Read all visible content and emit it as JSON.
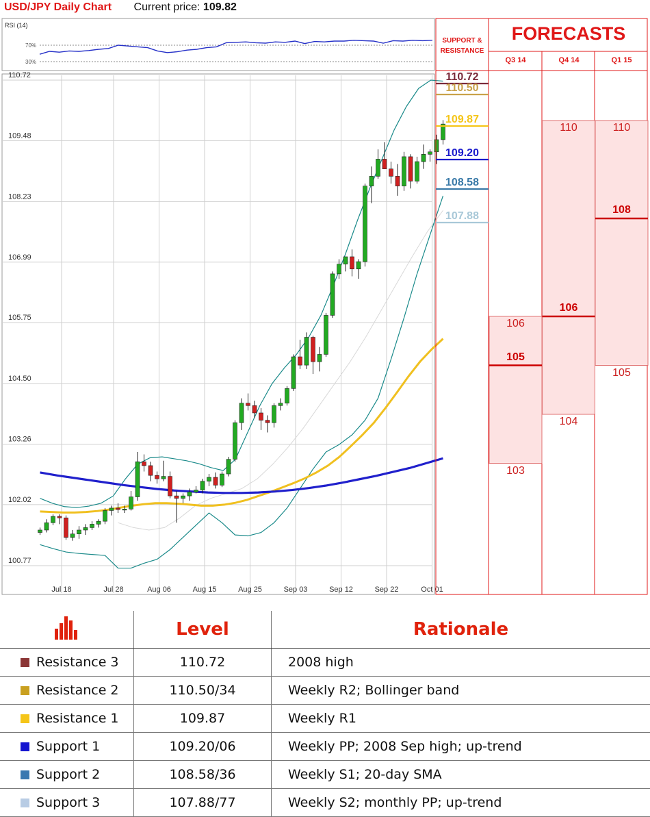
{
  "header": {
    "title": "USD/JPY Daily Chart",
    "price_label": "Current price:",
    "price": "109.82"
  },
  "rsi": {
    "label": "RSI (14)",
    "levels": [
      "70%",
      "30%"
    ],
    "values": [
      48,
      55,
      53,
      56,
      55,
      57,
      60,
      62,
      70,
      68,
      66,
      64,
      56,
      52,
      54,
      58,
      60,
      64,
      66,
      76,
      77,
      78,
      76,
      75,
      78,
      77,
      80,
      74,
      79,
      78,
      80,
      80,
      82,
      81,
      80,
      75,
      81,
      80,
      82,
      81,
      82
    ]
  },
  "colors": {
    "accent": "#e01818",
    "r3": "#8b2a2a",
    "r2": "#c9a24a",
    "r1": "#f5c518",
    "s1": "#1a1acc",
    "s2": "#3a7aa8",
    "s3": "#a8c8d8",
    "sma_yellow": "#f0c020",
    "sma_blue": "#2020cc",
    "bands": "#1a8a8a",
    "up": "#22aa22",
    "down": "#d02020",
    "forecast_fill": "#fde2e2"
  },
  "chart_data": [
    {
      "type": "candlestick",
      "y_ticks": [
        "110.72",
        "109.48",
        "108.23",
        "106.99",
        "105.75",
        "104.50",
        "103.26",
        "102.02",
        "100.77"
      ],
      "y_tick_values": [
        110.72,
        109.48,
        108.23,
        106.99,
        105.75,
        104.5,
        103.26,
        102.02,
        100.77
      ],
      "ylim": [
        100.68,
        110.77
      ],
      "x_labels": [
        "Jul 18",
        "Jul 28",
        "Aug 06",
        "Aug 15",
        "Aug 25",
        "Sep 03",
        "Sep 12",
        "Sep 22",
        "Oct 01"
      ],
      "x_label_index": [
        1,
        9,
        16,
        23,
        30,
        37,
        44,
        51,
        58
      ],
      "candles": [
        [
          101.45,
          101.55,
          101.4,
          101.5
        ],
        [
          101.5,
          101.72,
          101.45,
          101.65
        ],
        [
          101.65,
          101.82,
          101.6,
          101.78
        ],
        [
          101.78,
          101.82,
          101.62,
          101.75
        ],
        [
          101.75,
          101.8,
          101.3,
          101.35
        ],
        [
          101.35,
          101.5,
          101.28,
          101.42
        ],
        [
          101.42,
          101.58,
          101.32,
          101.5
        ],
        [
          101.5,
          101.62,
          101.4,
          101.55
        ],
        [
          101.55,
          101.68,
          101.5,
          101.62
        ],
        [
          101.62,
          101.72,
          101.55,
          101.68
        ],
        [
          101.68,
          101.95,
          101.62,
          101.9
        ],
        [
          101.9,
          102.0,
          101.8,
          101.95
        ],
        [
          101.95,
          102.05,
          101.85,
          101.92
        ],
        [
          101.92,
          102.0,
          101.85,
          101.93
        ],
        [
          101.93,
          102.3,
          101.9,
          102.18
        ],
        [
          102.18,
          103.1,
          102.1,
          102.9
        ],
        [
          102.9,
          103.05,
          102.7,
          102.82
        ],
        [
          102.82,
          102.9,
          102.5,
          102.62
        ],
        [
          102.62,
          102.7,
          102.45,
          102.55
        ],
        [
          102.55,
          102.92,
          102.5,
          102.6
        ],
        [
          102.6,
          102.7,
          102.15,
          102.2
        ],
        [
          102.2,
          102.3,
          101.65,
          102.15
        ],
        [
          102.15,
          102.25,
          102.05,
          102.2
        ],
        [
          102.2,
          102.35,
          102.1,
          102.28
        ],
        [
          102.28,
          102.4,
          102.25,
          102.32
        ],
        [
          102.32,
          102.55,
          102.25,
          102.5
        ],
        [
          102.5,
          102.65,
          102.4,
          102.58
        ],
        [
          102.58,
          102.68,
          102.35,
          102.42
        ],
        [
          102.42,
          102.7,
          102.38,
          102.65
        ],
        [
          102.65,
          103.0,
          102.6,
          102.95
        ],
        [
          102.95,
          103.75,
          102.9,
          103.7
        ],
        [
          103.7,
          104.2,
          103.55,
          104.1
        ],
        [
          104.1,
          104.3,
          103.95,
          104.05
        ],
        [
          104.05,
          104.15,
          103.8,
          103.9
        ],
        [
          103.9,
          104.0,
          103.55,
          103.75
        ],
        [
          103.75,
          103.85,
          103.5,
          103.7
        ],
        [
          103.7,
          104.1,
          103.6,
          104.05
        ],
        [
          104.05,
          104.2,
          103.95,
          104.1
        ],
        [
          104.1,
          104.45,
          104.05,
          104.4
        ],
        [
          104.4,
          105.1,
          104.35,
          105.05
        ],
        [
          105.05,
          105.4,
          104.8,
          104.88
        ],
        [
          104.88,
          105.55,
          104.8,
          105.45
        ],
        [
          105.45,
          105.48,
          104.7,
          104.95
        ],
        [
          104.95,
          105.25,
          104.75,
          105.1
        ],
        [
          105.1,
          105.95,
          105.05,
          105.9
        ],
        [
          105.9,
          106.8,
          105.85,
          106.75
        ],
        [
          106.75,
          107.05,
          106.65,
          106.95
        ],
        [
          106.95,
          107.1,
          106.8,
          107.1
        ],
        [
          107.1,
          107.25,
          106.7,
          106.85
        ],
        [
          106.85,
          107.05,
          106.65,
          107.0
        ],
        [
          107.0,
          108.6,
          106.9,
          108.55
        ],
        [
          108.55,
          108.95,
          108.2,
          108.75
        ],
        [
          108.75,
          109.3,
          108.7,
          109.1
        ],
        [
          109.1,
          109.45,
          108.9,
          108.9
        ],
        [
          108.9,
          109.05,
          108.6,
          108.75
        ],
        [
          108.75,
          109.0,
          108.35,
          108.55
        ],
        [
          108.55,
          109.25,
          108.45,
          109.15
        ],
        [
          109.15,
          109.2,
          108.5,
          108.65
        ],
        [
          108.65,
          109.15,
          108.6,
          109.05
        ],
        [
          109.05,
          109.4,
          108.9,
          109.2
        ],
        [
          109.2,
          109.3,
          109.05,
          109.25
        ],
        [
          109.25,
          109.6,
          109.0,
          109.5
        ],
        [
          109.5,
          109.9,
          109.4,
          109.82
        ]
      ],
      "sma_yellow": [
        101.88,
        101.87,
        101.86,
        101.86,
        101.87,
        101.89,
        101.92,
        101.96,
        102.0,
        102.03,
        102.05,
        102.05,
        102.04,
        102.02,
        102.0,
        102.0,
        102.02,
        102.06,
        102.12,
        102.2,
        102.28,
        102.37,
        102.46,
        102.56,
        102.68,
        102.82,
        103.0,
        103.22,
        103.45,
        103.7,
        104.0,
        104.32,
        104.65,
        104.95,
        105.2,
        105.42
      ],
      "sma_blue": [
        102.68,
        102.62,
        102.57,
        102.52,
        102.47,
        102.42,
        102.38,
        102.34,
        102.31,
        102.29,
        102.27,
        102.26,
        102.26,
        102.27,
        102.29,
        102.32,
        102.36,
        102.41,
        102.47,
        102.54,
        102.61,
        102.69,
        102.77,
        102.87,
        102.97
      ],
      "band_upper": [
        102.15,
        102.05,
        101.98,
        101.96,
        101.99,
        102.05,
        102.2,
        102.55,
        102.85,
        102.98,
        103.0,
        102.96,
        102.92,
        102.86,
        102.78,
        102.72,
        102.95,
        103.5,
        104.05,
        104.5,
        104.82,
        105.1,
        105.45,
        105.9,
        106.5,
        107.15,
        107.85,
        108.5,
        109.1,
        109.7,
        110.18,
        110.55,
        110.72,
        110.7
      ],
      "band_lower": [
        101.2,
        101.12,
        101.05,
        101.02,
        101.0,
        100.98,
        100.72,
        100.72,
        100.82,
        100.9,
        101.1,
        101.35,
        101.6,
        101.85,
        101.65,
        101.4,
        101.38,
        101.45,
        101.65,
        101.95,
        102.35,
        102.75,
        103.1,
        103.25,
        103.45,
        103.75,
        104.2,
        105.0,
        105.85,
        106.75,
        107.55,
        108.35
      ],
      "band_mid": [
        101.65,
        101.55,
        101.5,
        101.55,
        101.75,
        102.0,
        102.15,
        102.25,
        102.35,
        102.55,
        102.85,
        103.2,
        103.6,
        104.05,
        104.5,
        104.95,
        105.45,
        106.0,
        106.55,
        107.1,
        107.62,
        108.05
      ]
    },
    {
      "type": "forecast",
      "title": "FORECASTS",
      "columns": [
        "Q3 14",
        "Q4 14",
        "Q1 15"
      ],
      "forecasts": [
        {
          "labels": [
            "106",
            "105",
            "103"
          ],
          "values": [
            106,
            105,
            103
          ],
          "main": "105"
        },
        {
          "labels": [
            "110",
            "106",
            "104"
          ],
          "values": [
            110,
            106,
            104
          ],
          "main": "106"
        },
        {
          "labels": [
            "110",
            "108",
            "105"
          ],
          "values": [
            110,
            108,
            105
          ],
          "main": "108"
        }
      ],
      "support_resistance_title": [
        "SUPPORT &",
        "RESISTANCE"
      ],
      "levels": [
        {
          "label": "110.72",
          "value": 110.72,
          "color": "#7a2a3a"
        },
        {
          "label": "110.50",
          "value": 110.5,
          "color": "#c9a24a"
        },
        {
          "label": "109.87",
          "value": 109.87,
          "color": "#f5c518"
        },
        {
          "label": "109.20",
          "value": 109.2,
          "color": "#1a1acc"
        },
        {
          "label": "108.58",
          "value": 108.58,
          "color": "#3a7aa8"
        },
        {
          "label": "107.88",
          "value": 107.88,
          "color": "#a8c8d8"
        }
      ]
    }
  ],
  "table": {
    "headers": [
      "Level",
      "Rationale"
    ],
    "icon": "bar-chart-icon",
    "rows": [
      {
        "name": "Resistance 3",
        "level": "110.72",
        "rationale": "2008 high",
        "color": "#8b3535"
      },
      {
        "name": "Resistance 2",
        "level": "110.50/34",
        "rationale": "Weekly R2; Bollinger band",
        "color": "#c9a020"
      },
      {
        "name": "Resistance 1",
        "level": "109.87",
        "rationale": "Weekly R1",
        "color": "#f5c518"
      },
      {
        "name": "Support 1",
        "level": "109.20/06",
        "rationale": "Weekly PP; 2008 Sep high; up-trend",
        "color": "#1515d0"
      },
      {
        "name": "Support 2",
        "level": "108.58/36",
        "rationale": "Weekly S1; 20-day SMA",
        "color": "#3a78b0"
      },
      {
        "name": "Support 3",
        "level": "107.88/77",
        "rationale": "Weekly S2; monthly PP; up-trend",
        "color": "#b8cce4"
      }
    ]
  }
}
